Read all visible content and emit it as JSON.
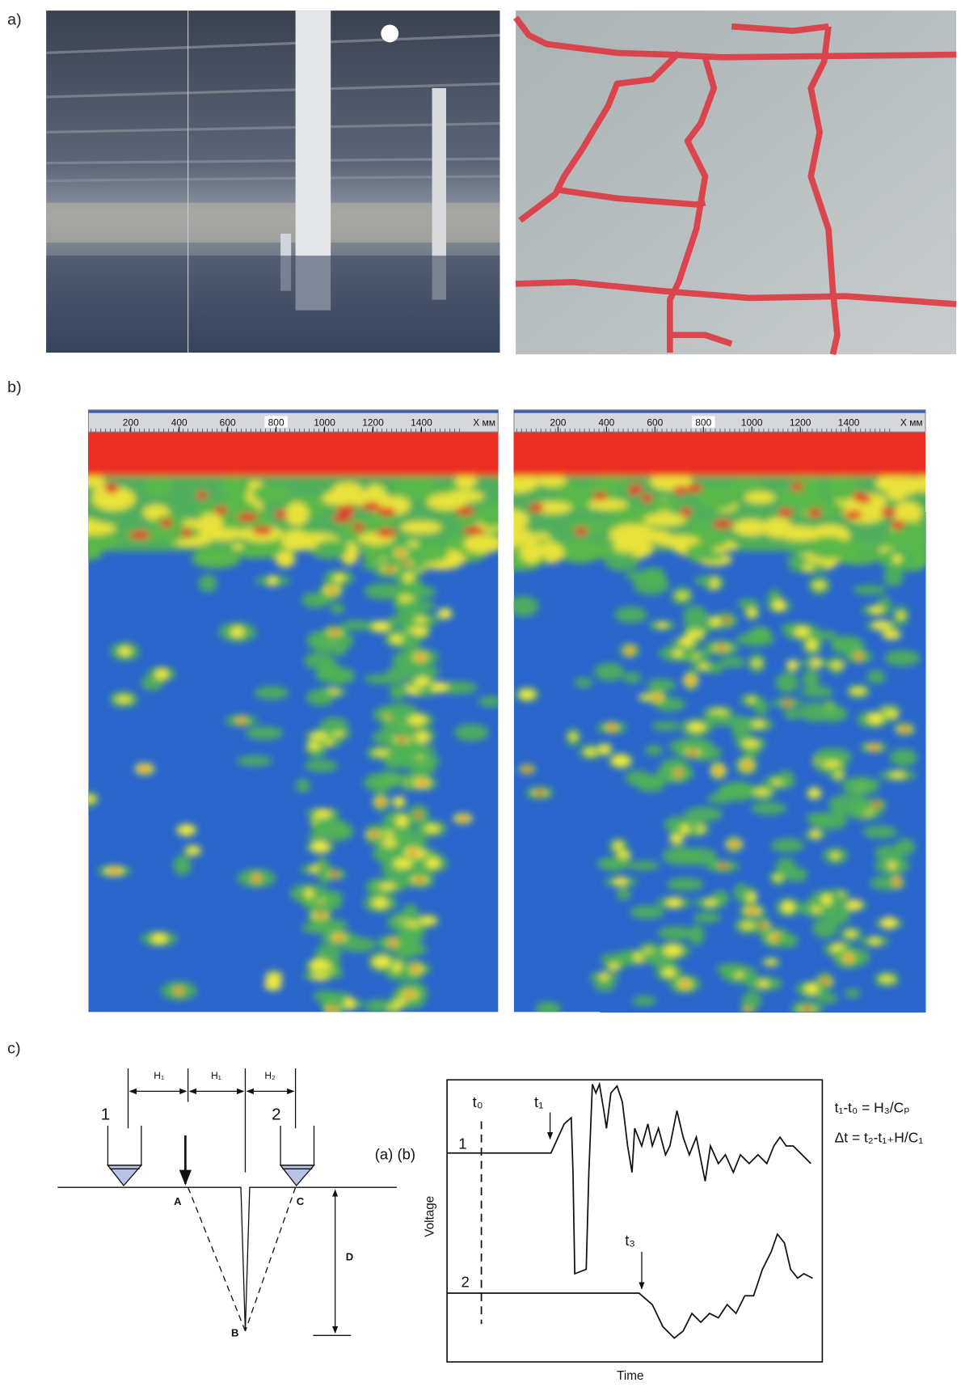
{
  "panels": {
    "a": "a)",
    "b": "b)",
    "c": "c)"
  },
  "heatmaps": [
    {
      "ruler_ticks": [
        200,
        400,
        600,
        800,
        1000,
        1200,
        1400
      ],
      "unit": "X мм"
    },
    {
      "ruler_ticks": [
        200,
        400,
        600,
        800,
        1000,
        1200,
        1400
      ],
      "unit": "X мм"
    }
  ],
  "diagram": {
    "spacings": [
      "H₁",
      "H₁",
      "H₂"
    ],
    "transducers": [
      "1",
      "2"
    ],
    "points": [
      "A",
      "B",
      "C",
      "D"
    ],
    "subfigure_labels": "(a)  (b)",
    "plot": {
      "times": [
        "t₀",
        "t₁",
        "t₃"
      ],
      "traces": [
        "1",
        "2"
      ],
      "ylabel": "Voltage",
      "xlabel": "Time"
    },
    "equations": [
      "t₁-t₀ = H₃/Cₚ",
      "Δt = t₂-t₁₊H/C₁"
    ]
  }
}
